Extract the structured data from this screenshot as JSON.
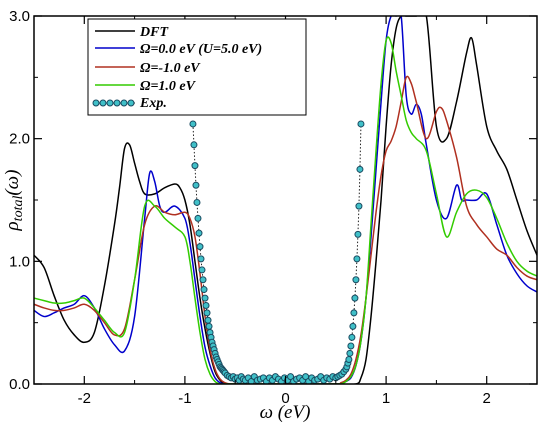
{
  "chart_data": {
    "type": "line",
    "xlabel": "ω (eV)",
    "ylabel_main": "ρ",
    "ylabel_sub": "total",
    "ylabel_suffix": "(ω)",
    "xlim": [
      -2.5,
      2.5
    ],
    "ylim": [
      0,
      3.0
    ],
    "xticks": [
      -2,
      -1,
      0,
      1,
      2
    ],
    "yticks": [
      0,
      1,
      2,
      3
    ],
    "xtick_labels": [
      "-2",
      "-1",
      "0",
      "1",
      "2"
    ],
    "ytick_labels": [
      "0.0",
      "1.0",
      "2.0",
      "3.0"
    ],
    "grid": false,
    "legend_position": "top-left",
    "series": [
      {
        "name": "DFT",
        "color": "#000000",
        "style": "solid",
        "x": [
          -2.5,
          -2.4,
          -2.3,
          -2.2,
          -2.1,
          -2.0,
          -1.9,
          -1.8,
          -1.7,
          -1.65,
          -1.6,
          -1.55,
          -1.5,
          -1.45,
          -1.4,
          -1.3,
          -1.2,
          -1.1,
          -1.05,
          -1.0,
          -0.95,
          -0.9,
          -0.85,
          -0.8,
          -0.75,
          -0.7,
          -0.65,
          -0.6,
          -0.5,
          0.0,
          0.5,
          0.7,
          0.75,
          0.8,
          0.85,
          0.9,
          0.95,
          1.0,
          1.05,
          1.1,
          1.15,
          1.2,
          1.3,
          1.4,
          1.5,
          1.6,
          1.7,
          1.8,
          1.85,
          1.9,
          2.0,
          2.1,
          2.2,
          2.3,
          2.4,
          2.5
        ],
        "y": [
          1.05,
          0.95,
          0.72,
          0.52,
          0.4,
          0.34,
          0.42,
          0.8,
          1.3,
          1.6,
          1.92,
          1.95,
          1.8,
          1.65,
          1.55,
          1.55,
          1.6,
          1.63,
          1.6,
          1.5,
          1.3,
          1.0,
          0.7,
          0.45,
          0.25,
          0.1,
          0.03,
          0.0,
          0.0,
          0.0,
          0.0,
          0.0,
          0.05,
          0.2,
          0.55,
          1.0,
          1.5,
          2.1,
          2.6,
          2.9,
          3.0,
          3.0,
          3.0,
          3.0,
          2.1,
          2.0,
          2.3,
          2.7,
          2.82,
          2.6,
          2.1,
          1.9,
          1.75,
          1.5,
          1.25,
          1.05
        ]
      },
      {
        "name": "Ω=0.0 eV  (U=5.0 eV)",
        "color": "#0000cc",
        "style": "solid",
        "x": [
          -2.5,
          -2.4,
          -2.3,
          -2.2,
          -2.1,
          -2.0,
          -1.9,
          -1.8,
          -1.7,
          -1.6,
          -1.5,
          -1.4,
          -1.35,
          -1.3,
          -1.25,
          -1.2,
          -1.1,
          -1.0,
          -0.95,
          -0.9,
          -0.85,
          -0.8,
          -0.75,
          -0.7,
          -0.65,
          -0.6,
          -0.55,
          -0.5,
          0.0,
          0.5,
          0.55,
          0.6,
          0.65,
          0.7,
          0.75,
          0.8,
          0.85,
          0.9,
          0.95,
          1.0,
          1.05,
          1.1,
          1.15,
          1.2,
          1.25,
          1.3,
          1.35,
          1.4,
          1.5,
          1.6,
          1.7,
          1.75,
          1.8,
          1.9,
          2.0,
          2.1,
          2.2,
          2.3,
          2.4,
          2.5
        ],
        "y": [
          0.6,
          0.55,
          0.58,
          0.62,
          0.65,
          0.72,
          0.62,
          0.45,
          0.32,
          0.27,
          0.55,
          1.35,
          1.72,
          1.65,
          1.45,
          1.4,
          1.45,
          1.35,
          1.15,
          0.85,
          0.55,
          0.3,
          0.15,
          0.05,
          0.01,
          0.0,
          0.0,
          0.0,
          0.0,
          0.0,
          0.0,
          0.02,
          0.05,
          0.15,
          0.35,
          0.7,
          1.2,
          1.75,
          2.3,
          2.8,
          3.0,
          3.0,
          3.0,
          2.35,
          2.2,
          2.28,
          2.2,
          1.95,
          1.5,
          1.35,
          1.62,
          1.5,
          1.5,
          1.5,
          1.55,
          1.3,
          1.05,
          0.9,
          0.8,
          0.75
        ]
      },
      {
        "name": "Ω=-1.0 eV",
        "color": "#b03020",
        "style": "solid",
        "x": [
          -2.5,
          -2.4,
          -2.3,
          -2.2,
          -2.1,
          -2.0,
          -1.9,
          -1.8,
          -1.7,
          -1.6,
          -1.5,
          -1.4,
          -1.3,
          -1.2,
          -1.1,
          -1.0,
          -0.95,
          -0.9,
          -0.85,
          -0.8,
          -0.75,
          -0.7,
          -0.65,
          -0.6,
          -0.55,
          -0.5,
          0.0,
          0.5,
          0.55,
          0.6,
          0.65,
          0.7,
          0.75,
          0.8,
          0.85,
          0.9,
          0.95,
          1.0,
          1.05,
          1.1,
          1.15,
          1.2,
          1.25,
          1.3,
          1.4,
          1.5,
          1.55,
          1.6,
          1.7,
          1.8,
          1.9,
          2.0,
          2.1,
          2.2,
          2.3,
          2.4,
          2.5
        ],
        "y": [
          0.65,
          0.62,
          0.6,
          0.6,
          0.62,
          0.65,
          0.6,
          0.5,
          0.4,
          0.45,
          0.85,
          1.3,
          1.45,
          1.4,
          1.38,
          1.4,
          1.35,
          1.2,
          0.9,
          0.55,
          0.28,
          0.12,
          0.04,
          0.01,
          0.0,
          0.0,
          0.0,
          0.0,
          0.01,
          0.03,
          0.08,
          0.2,
          0.4,
          0.7,
          1.05,
          1.4,
          1.7,
          1.9,
          1.98,
          2.1,
          2.3,
          2.5,
          2.45,
          2.3,
          2.0,
          2.22,
          2.25,
          2.15,
          1.85,
          1.45,
          1.3,
          1.2,
          1.1,
          1.05,
          0.95,
          0.88,
          0.85
        ]
      },
      {
        "name": "Ω=1.0 eV",
        "color": "#33cc00",
        "style": "solid",
        "x": [
          -2.5,
          -2.4,
          -2.3,
          -2.2,
          -2.1,
          -2.0,
          -1.9,
          -1.8,
          -1.7,
          -1.6,
          -1.5,
          -1.4,
          -1.3,
          -1.2,
          -1.1,
          -1.0,
          -0.95,
          -0.9,
          -0.85,
          -0.8,
          -0.75,
          -0.7,
          -0.65,
          -0.6,
          -0.5,
          0.0,
          0.5,
          0.55,
          0.6,
          0.65,
          0.7,
          0.75,
          0.8,
          0.85,
          0.9,
          0.95,
          1.0,
          1.05,
          1.1,
          1.15,
          1.2,
          1.25,
          1.3,
          1.4,
          1.5,
          1.6,
          1.7,
          1.8,
          1.9,
          2.0,
          2.1,
          2.2,
          2.3,
          2.4,
          2.5
        ],
        "y": [
          0.7,
          0.68,
          0.66,
          0.66,
          0.68,
          0.7,
          0.62,
          0.52,
          0.42,
          0.42,
          0.85,
          1.45,
          1.45,
          1.35,
          1.28,
          1.2,
          1.0,
          0.7,
          0.42,
          0.2,
          0.08,
          0.02,
          0.0,
          0.0,
          0.0,
          0.0,
          0.0,
          0.0,
          0.02,
          0.06,
          0.15,
          0.35,
          0.7,
          1.3,
          1.9,
          2.45,
          2.8,
          2.78,
          2.55,
          2.35,
          2.15,
          2.05,
          2.0,
          1.9,
          1.55,
          1.2,
          1.4,
          1.55,
          1.58,
          1.52,
          1.35,
          1.15,
          1.0,
          0.92,
          0.88
        ]
      },
      {
        "name": "Exp.",
        "color": "#40c0c8",
        "style": "dotted-circle-markers",
        "x": [
          -0.92,
          -0.91,
          -0.9,
          -0.89,
          -0.88,
          -0.87,
          -0.86,
          -0.85,
          -0.84,
          -0.83,
          -0.82,
          -0.81,
          -0.8,
          -0.79,
          -0.78,
          -0.77,
          -0.76,
          -0.75,
          -0.74,
          -0.73,
          -0.72,
          -0.71,
          -0.7,
          -0.69,
          -0.68,
          -0.67,
          -0.66,
          -0.65,
          -0.64,
          -0.63,
          -0.62,
          -0.61,
          -0.6,
          -0.58,
          -0.56,
          -0.54,
          -0.52,
          -0.5,
          -0.48,
          -0.46,
          -0.44,
          -0.42,
          -0.4,
          -0.37,
          -0.34,
          -0.31,
          -0.28,
          -0.25,
          -0.22,
          -0.19,
          -0.16,
          -0.13,
          -0.1,
          -0.07,
          -0.04,
          -0.01,
          0.02,
          0.05,
          0.08,
          0.11,
          0.14,
          0.17,
          0.2,
          0.23,
          0.26,
          0.29,
          0.32,
          0.35,
          0.38,
          0.41,
          0.44,
          0.47,
          0.5,
          0.52,
          0.54,
          0.56,
          0.58,
          0.6,
          0.61,
          0.62,
          0.63,
          0.64,
          0.65,
          0.66,
          0.67,
          0.68,
          0.69,
          0.7,
          0.71,
          0.72,
          0.73,
          0.74,
          0.75
        ],
        "y": [
          2.12,
          1.95,
          1.78,
          1.62,
          1.48,
          1.35,
          1.23,
          1.12,
          1.02,
          0.93,
          0.85,
          0.77,
          0.7,
          0.64,
          0.58,
          0.52,
          0.47,
          0.42,
          0.38,
          0.34,
          0.31,
          0.28,
          0.25,
          0.22,
          0.2,
          0.18,
          0.16,
          0.14,
          0.13,
          0.12,
          0.11,
          0.1,
          0.09,
          0.07,
          0.06,
          0.05,
          0.06,
          0.04,
          0.05,
          0.03,
          0.06,
          0.04,
          0.03,
          0.05,
          0.02,
          0.06,
          0.03,
          0.04,
          0.05,
          0.02,
          0.05,
          0.03,
          0.06,
          0.04,
          0.02,
          0.05,
          0.03,
          0.06,
          0.02,
          0.04,
          0.05,
          0.03,
          0.06,
          0.02,
          0.05,
          0.03,
          0.04,
          0.06,
          0.03,
          0.05,
          0.04,
          0.06,
          0.05,
          0.06,
          0.07,
          0.08,
          0.1,
          0.12,
          0.14,
          0.17,
          0.2,
          0.25,
          0.31,
          0.38,
          0.47,
          0.58,
          0.7,
          0.85,
          1.02,
          1.22,
          1.45,
          1.75,
          2.12
        ]
      }
    ]
  }
}
